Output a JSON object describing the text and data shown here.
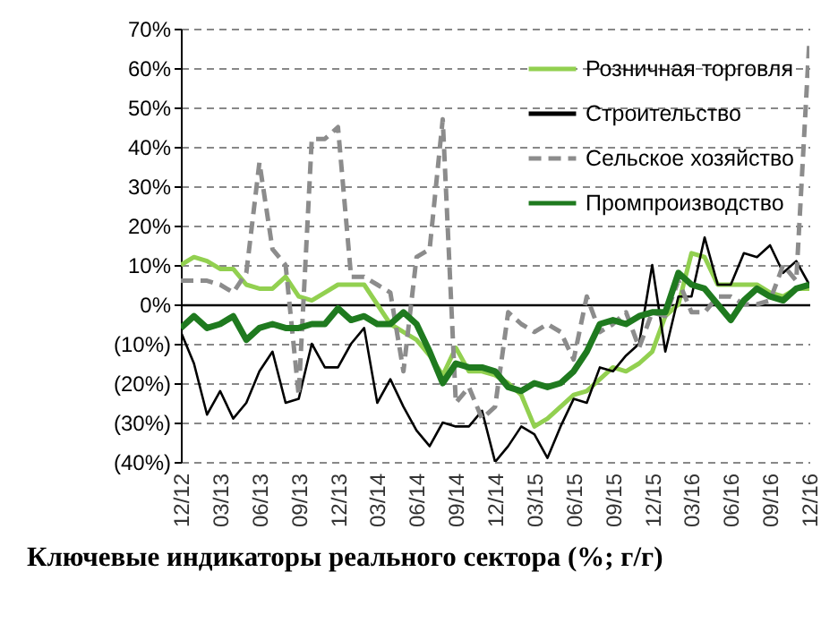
{
  "chart_data": {
    "type": "line",
    "title": "Ключевые индикаторы реального сектора (%; г/г)",
    "categories": [
      "12/12",
      null,
      null,
      "03/13",
      null,
      null,
      "06/13",
      null,
      null,
      "09/13",
      null,
      null,
      "12/13",
      null,
      null,
      "03/14",
      null,
      null,
      "06/14",
      null,
      null,
      "09/14",
      null,
      null,
      "12/14",
      null,
      null,
      "03/15",
      null,
      null,
      "06/15",
      null,
      null,
      "09/15",
      null,
      null,
      "12/15",
      null,
      null,
      "03/16",
      null,
      null,
      "06/16",
      null,
      null,
      "09/16",
      null,
      null,
      "12/16"
    ],
    "series": [
      {
        "name": "Розничная торговля",
        "color": "#92d050",
        "line_style": "solid",
        "values": [
          10,
          12,
          11,
          9,
          9,
          5,
          4,
          4,
          7,
          2,
          1,
          3,
          5,
          5,
          5,
          0,
          -5,
          -7,
          -9,
          -13,
          -18,
          -11,
          -17,
          -17,
          -18,
          -20,
          -23,
          -31,
          -29,
          -26,
          -23,
          -22,
          -19,
          -16,
          -17,
          -15,
          -12,
          -3,
          0,
          13,
          12,
          5,
          5,
          5,
          5,
          3,
          2,
          4,
          4
        ]
      },
      {
        "name": "Строительство",
        "color": "#000000",
        "line_style": "solid",
        "values": [
          -7,
          -15,
          -28,
          -22,
          -29,
          -25,
          -17,
          -12,
          -25,
          -24,
          -10,
          -16,
          -16,
          -10,
          -6,
          -25,
          -19,
          -26,
          -32,
          -36,
          -30,
          -31,
          -31,
          -27,
          -40,
          -36,
          -31,
          -33,
          -39,
          -31,
          -24,
          -25,
          -16,
          -17,
          -13,
          -10,
          10,
          -12,
          2,
          2,
          17,
          5,
          5,
          13,
          12,
          15,
          8,
          11,
          5
        ]
      },
      {
        "name": "Сельское хозяйство",
        "color": "#8c8c8c",
        "line_style": "dashed",
        "values": [
          6,
          6,
          6,
          5,
          3,
          8,
          36,
          14,
          10,
          -23,
          42,
          42,
          45,
          7,
          7,
          5,
          3,
          -17,
          12,
          14,
          47,
          -25,
          -21,
          -29,
          -26,
          -2,
          -5,
          -7,
          -5,
          -7,
          -14,
          2,
          -7,
          -5,
          -2,
          -11,
          -2,
          -3,
          6,
          -2,
          -2,
          2,
          2,
          0,
          0,
          1,
          10,
          6,
          67
        ]
      },
      {
        "name": "Промпроизводство",
        "color": "#1f7a1f",
        "line_style": "solid",
        "values": [
          -6,
          -3,
          -6,
          -5,
          -3,
          -9,
          -6,
          -5,
          -6,
          -6,
          -5,
          -5,
          -1,
          -4,
          -3,
          -5,
          -5,
          -2,
          -5,
          -12,
          -20,
          -15,
          -16,
          -16,
          -17,
          -21,
          -22,
          -20,
          -21,
          -20,
          -17,
          -12,
          -5,
          -4,
          -5,
          -3,
          -2,
          -2,
          8,
          5,
          4,
          0,
          -4,
          1,
          4,
          2,
          1,
          4,
          5
        ]
      }
    ],
    "ylim": [
      -40,
      70
    ],
    "yticks": [
      {
        "value": -40,
        "label": "(40%)"
      },
      {
        "value": -30,
        "label": "(30%)"
      },
      {
        "value": -20,
        "label": "(20%)"
      },
      {
        "value": -10,
        "label": "(10%)"
      },
      {
        "value": 0,
        "label": "0%"
      },
      {
        "value": 10,
        "label": "10%"
      },
      {
        "value": 20,
        "label": "20%"
      },
      {
        "value": 30,
        "label": "30%"
      },
      {
        "value": 40,
        "label": "40%"
      },
      {
        "value": 50,
        "label": "50%"
      },
      {
        "value": 60,
        "label": "60%"
      },
      {
        "value": 70,
        "label": "70%"
      }
    ],
    "grid": "y",
    "legend": "top right"
  }
}
